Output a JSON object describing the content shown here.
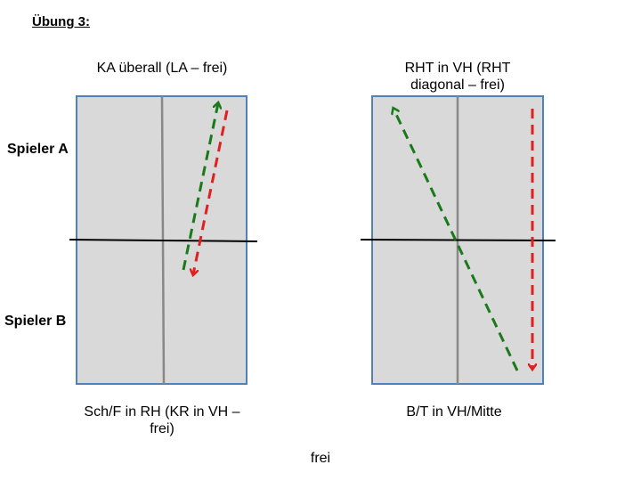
{
  "heading": "Übung 3:",
  "players": {
    "a": "Spieler A",
    "b": "Spieler B"
  },
  "left_table": {
    "top_caption": "KA überall (LA – frei)",
    "bottom_caption": "Sch/F in RH (KR in VH – frei)"
  },
  "right_table": {
    "top_caption": "RHT in VH (RHT diagonal – frei)",
    "bottom_caption": "B/T in VH/Mitte"
  },
  "footer": "frei",
  "colors": {
    "table_fill": "#d9d9d9",
    "table_border": "#4f81bd",
    "center_line": "#888888",
    "net": "#000000",
    "arrow_green": "#1a7a1a",
    "arrow_red": "#e02020"
  }
}
